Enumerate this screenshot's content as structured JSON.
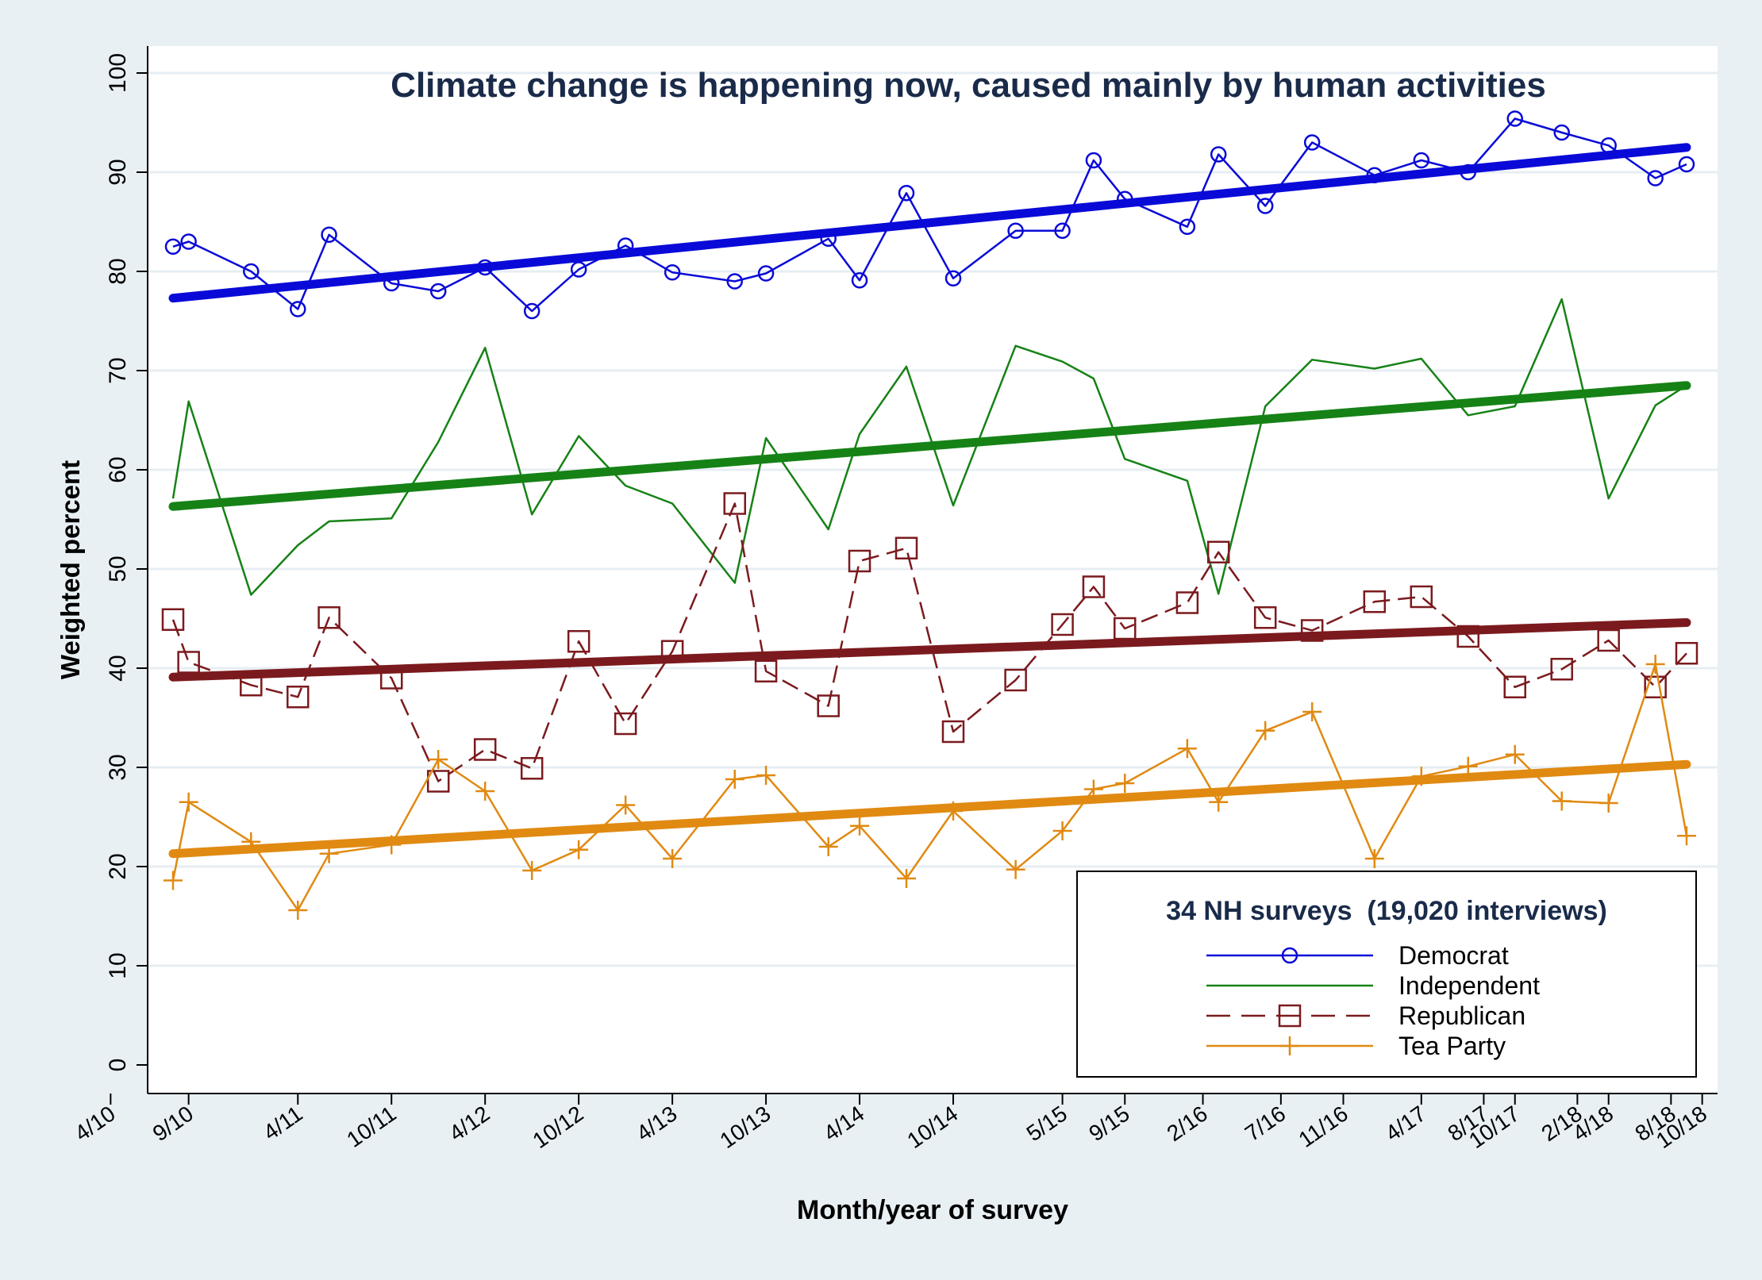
{
  "chart_data": {
    "type": "line",
    "title": "Climate change is happening now, caused mainly by human activities",
    "xlabel": "Month/year of survey",
    "ylabel": "Weighted percent",
    "ylim": [
      0,
      100
    ],
    "yticks": [
      0,
      10,
      20,
      30,
      40,
      50,
      60,
      70,
      80,
      90,
      100
    ],
    "xlim": [
      "2010-02",
      "2018-11"
    ],
    "xtick_labels": [
      {
        "label": "4/10",
        "date": "2010-04"
      },
      {
        "label": "9/10",
        "date": "2010-09"
      },
      {
        "label": "4/11",
        "date": "2011-04"
      },
      {
        "label": "10/11",
        "date": "2011-10"
      },
      {
        "label": "4/12",
        "date": "2012-04"
      },
      {
        "label": "10/12",
        "date": "2012-10"
      },
      {
        "label": "4/13",
        "date": "2013-04"
      },
      {
        "label": "10/13",
        "date": "2013-10"
      },
      {
        "label": "4/14",
        "date": "2014-04"
      },
      {
        "label": "10/14",
        "date": "2014-10"
      },
      {
        "label": "5/15",
        "date": "2015-05"
      },
      {
        "label": "9/15",
        "date": "2015-09"
      },
      {
        "label": "2/16",
        "date": "2016-02"
      },
      {
        "label": "7/16",
        "date": "2016-07"
      },
      {
        "label": "11/16",
        "date": "2016-11"
      },
      {
        "label": "4/17",
        "date": "2017-04"
      },
      {
        "label": "8/17",
        "date": "2017-08"
      },
      {
        "label": "10/17",
        "date": "2017-10"
      },
      {
        "label": "2/18",
        "date": "2018-02"
      },
      {
        "label": "4/18",
        "date": "2018-04"
      },
      {
        "label": "8/18",
        "date": "2018-08"
      },
      {
        "label": "10/18",
        "date": "2018-10"
      }
    ],
    "grid": true,
    "legend_position": "bottom-right",
    "legend_title": "34 NH surveys  (19,020 interviews)",
    "x": [
      "2010-08",
      "2010-09",
      "2011-01",
      "2011-04",
      "2011-06",
      "2011-10",
      "2012-01",
      "2012-04",
      "2012-07",
      "2012-10",
      "2013-01",
      "2013-04",
      "2013-08",
      "2013-10",
      "2014-02",
      "2014-04",
      "2014-07",
      "2014-10",
      "2015-02",
      "2015-05",
      "2015-07",
      "2015-09",
      "2016-01",
      "2016-03",
      "2016-06",
      "2016-09",
      "2017-01",
      "2017-04",
      "2017-07",
      "2017-10",
      "2018-01",
      "2018-04",
      "2018-07",
      "2018-09"
    ],
    "series": [
      {
        "name": "Democrat",
        "color": "#0a0ad8",
        "marker": "circle",
        "values": [
          82.5,
          83,
          80,
          76.2,
          83.7,
          78.8,
          78,
          80.4,
          76,
          80.2,
          82.6,
          79.9,
          79,
          79.8,
          83.3,
          79.1,
          87.9,
          79.3,
          84.1,
          84.1,
          91.2,
          87.3,
          84.5,
          91.8,
          86.6,
          93,
          89.7,
          91.2,
          90,
          95.4,
          94,
          92.7,
          89.4,
          90.8
        ],
        "trend": [
          77.3,
          92.5
        ]
      },
      {
        "name": "Independent",
        "color": "#168216",
        "marker": "none",
        "values": [
          57.1,
          66.9,
          47.4,
          52.4,
          54.8,
          55.1,
          62.8,
          72.3,
          55.5,
          63.4,
          58.4,
          56.6,
          48.6,
          63.2,
          54,
          63.6,
          70.4,
          56.4,
          72.5,
          70.9,
          69.2,
          61.1,
          58.9,
          47.5,
          66.4,
          71.1,
          70.2,
          71.2,
          65.5,
          66.4,
          77.2,
          57.1,
          66.5,
          68.5
        ],
        "trend": [
          56.3,
          68.5
        ]
      },
      {
        "name": "Republican",
        "color": "#7b1a1e",
        "marker": "square",
        "values": [
          44.9,
          40.6,
          38.3,
          37.1,
          45.1,
          39,
          28.6,
          31.8,
          29.9,
          42.7,
          34.4,
          41.7,
          56.6,
          39.7,
          36.2,
          50.8,
          52.1,
          33.6,
          38.8,
          44.4,
          48.2,
          44,
          46.6,
          51.7,
          45.1,
          43.8,
          46.7,
          47.2,
          43.2,
          38.1,
          39.9,
          42.8,
          38.1,
          41.5
        ],
        "trend": [
          39.1,
          44.6
        ]
      },
      {
        "name": "Tea Party",
        "color": "#e08a12",
        "marker": "plus",
        "values": [
          18.6,
          26.5,
          22.5,
          15.6,
          21.3,
          22.2,
          30.8,
          27.6,
          19.6,
          21.7,
          26.2,
          20.8,
          28.8,
          29.2,
          22,
          24.1,
          18.8,
          25.6,
          19.7,
          23.6,
          27.8,
          28.4,
          31.9,
          26.5,
          33.7,
          35.6,
          20.8,
          29.1,
          30.1,
          31.3,
          26.6,
          26.4,
          40.4,
          23.1
        ],
        "trend": [
          21.3,
          30.3
        ]
      }
    ]
  }
}
